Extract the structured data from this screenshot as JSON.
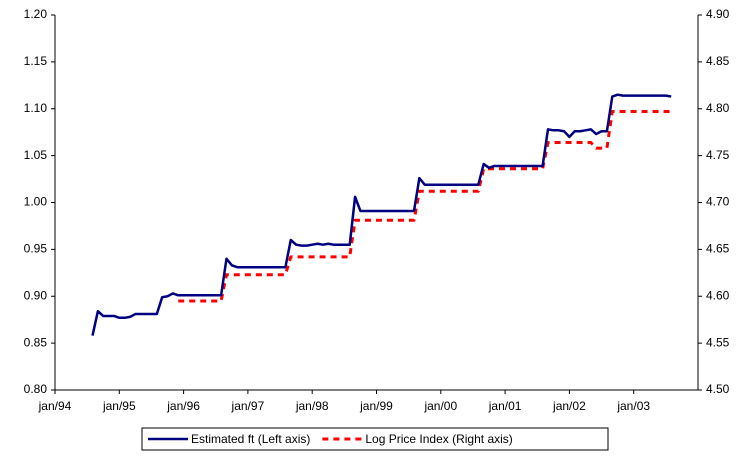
{
  "chart_data": {
    "type": "line",
    "x": [
      "1994-08",
      "1994-09",
      "1994-10",
      "1994-11",
      "1994-12",
      "1995-01",
      "1995-02",
      "1995-03",
      "1995-04",
      "1995-05",
      "1995-06",
      "1995-07",
      "1995-08",
      "1995-09",
      "1995-10",
      "1995-11",
      "1995-12",
      "1996-01",
      "1996-02",
      "1996-03",
      "1996-04",
      "1996-05",
      "1996-06",
      "1996-07",
      "1996-08",
      "1996-09",
      "1996-10",
      "1996-11",
      "1996-12",
      "1997-01",
      "1997-02",
      "1997-03",
      "1997-04",
      "1997-05",
      "1997-06",
      "1997-07",
      "1997-08",
      "1997-09",
      "1997-10",
      "1997-11",
      "1997-12",
      "1998-01",
      "1998-02",
      "1998-03",
      "1998-04",
      "1998-05",
      "1998-06",
      "1998-07",
      "1998-08",
      "1998-09",
      "1998-10",
      "1998-11",
      "1998-12",
      "1999-01",
      "1999-02",
      "1999-03",
      "1999-04",
      "1999-05",
      "1999-06",
      "1999-07",
      "1999-08",
      "1999-09",
      "1999-10",
      "1999-11",
      "1999-12",
      "2000-01",
      "2000-02",
      "2000-03",
      "2000-04",
      "2000-05",
      "2000-06",
      "2000-07",
      "2000-08",
      "2000-09",
      "2000-10",
      "2000-11",
      "2000-12",
      "2001-01",
      "2001-02",
      "2001-03",
      "2001-04",
      "2001-05",
      "2001-06",
      "2001-07",
      "2001-08",
      "2001-09",
      "2001-10",
      "2001-11",
      "2001-12",
      "2002-01",
      "2002-02",
      "2002-03",
      "2002-04",
      "2002-05",
      "2002-06",
      "2002-07",
      "2002-08",
      "2002-09",
      "2002-10",
      "2002-11",
      "2002-12",
      "2003-01",
      "2003-02",
      "2003-03",
      "2003-04",
      "2003-05",
      "2003-06",
      "2003-07",
      "2003-08"
    ],
    "series": [
      {
        "name": "Estimated ft (Left axis)",
        "color": "#000080",
        "axis": "y",
        "values": [
          0.858,
          0.884,
          0.879,
          0.879,
          0.879,
          0.877,
          0.877,
          0.878,
          0.881,
          0.881,
          0.881,
          0.881,
          0.881,
          0.899,
          0.9,
          0.903,
          0.901,
          0.901,
          0.901,
          0.901,
          0.901,
          0.901,
          0.901,
          0.901,
          0.901,
          0.94,
          0.933,
          0.931,
          0.931,
          0.931,
          0.931,
          0.931,
          0.931,
          0.931,
          0.931,
          0.931,
          0.931,
          0.96,
          0.955,
          0.954,
          0.954,
          0.955,
          0.956,
          0.955,
          0.956,
          0.955,
          0.955,
          0.955,
          0.955,
          1.006,
          0.991,
          0.991,
          0.991,
          0.991,
          0.991,
          0.991,
          0.991,
          0.991,
          0.991,
          0.991,
          0.991,
          1.026,
          1.019,
          1.019,
          1.019,
          1.019,
          1.019,
          1.019,
          1.019,
          1.019,
          1.019,
          1.019,
          1.019,
          1.041,
          1.037,
          1.039,
          1.039,
          1.039,
          1.039,
          1.039,
          1.039,
          1.039,
          1.039,
          1.039,
          1.039,
          1.078,
          1.077,
          1.077,
          1.076,
          1.07,
          1.076,
          1.076,
          1.077,
          1.078,
          1.073,
          1.076,
          1.076,
          1.113,
          1.115,
          1.114,
          1.114,
          1.114,
          1.114,
          1.114,
          1.114,
          1.114,
          1.114,
          1.114,
          1.113
        ]
      },
      {
        "name": "Log Price Index (Right axis)",
        "color": "#ff0000",
        "axis": "y2",
        "dashed": true,
        "values": [
          null,
          null,
          null,
          null,
          null,
          null,
          null,
          null,
          null,
          null,
          null,
          null,
          null,
          null,
          null,
          null,
          4.595,
          4.595,
          4.595,
          4.595,
          4.595,
          4.595,
          4.595,
          4.595,
          4.595,
          4.623,
          4.623,
          4.623,
          4.623,
          4.623,
          4.623,
          4.623,
          4.623,
          4.623,
          4.623,
          4.623,
          4.623,
          4.642,
          4.642,
          4.642,
          4.642,
          4.642,
          4.642,
          4.642,
          4.642,
          4.642,
          4.642,
          4.642,
          4.642,
          4.681,
          4.681,
          4.681,
          4.681,
          4.681,
          4.681,
          4.681,
          4.681,
          4.681,
          4.681,
          4.681,
          4.681,
          4.712,
          4.712,
          4.712,
          4.712,
          4.712,
          4.712,
          4.712,
          4.712,
          4.712,
          4.712,
          4.712,
          4.712,
          4.736,
          4.736,
          4.736,
          4.736,
          4.736,
          4.736,
          4.736,
          4.736,
          4.736,
          4.736,
          4.736,
          4.736,
          4.764,
          4.764,
          4.764,
          4.764,
          4.764,
          4.764,
          4.764,
          4.764,
          4.764,
          4.758,
          4.758,
          4.758,
          4.797,
          4.797,
          4.797,
          4.797,
          4.797,
          4.797,
          4.797,
          4.797,
          4.797,
          4.797,
          4.797,
          4.797
        ]
      }
    ],
    "xlim": [
      "1994-01",
      "2004-01"
    ],
    "xticks": [
      {
        "value": "1994-01",
        "label": "jan/94"
      },
      {
        "value": "1995-01",
        "label": "jan/95"
      },
      {
        "value": "1996-01",
        "label": "jan/96"
      },
      {
        "value": "1997-01",
        "label": "jan/97"
      },
      {
        "value": "1998-01",
        "label": "jan/98"
      },
      {
        "value": "1999-01",
        "label": "jan/99"
      },
      {
        "value": "2000-01",
        "label": "jan/00"
      },
      {
        "value": "2001-01",
        "label": "jan/01"
      },
      {
        "value": "2002-01",
        "label": "jan/02"
      },
      {
        "value": "2003-01",
        "label": "jan/03"
      }
    ],
    "ylim": [
      0.8,
      1.2
    ],
    "yticks": [
      {
        "value": 0.8,
        "label": "0.80"
      },
      {
        "value": 0.85,
        "label": "0.85"
      },
      {
        "value": 0.9,
        "label": "0.90"
      },
      {
        "value": 0.95,
        "label": "0.95"
      },
      {
        "value": 1.0,
        "label": "1.00"
      },
      {
        "value": 1.05,
        "label": "1.05"
      },
      {
        "value": 1.1,
        "label": "1.10"
      },
      {
        "value": 1.15,
        "label": "1.15"
      },
      {
        "value": 1.2,
        "label": "1.20"
      }
    ],
    "y2lim": [
      4.5,
      4.9
    ],
    "y2ticks": [
      {
        "value": 4.5,
        "label": "4.50"
      },
      {
        "value": 4.55,
        "label": "4.55"
      },
      {
        "value": 4.6,
        "label": "4.60"
      },
      {
        "value": 4.65,
        "label": "4.65"
      },
      {
        "value": 4.7,
        "label": "4.70"
      },
      {
        "value": 4.75,
        "label": "4.75"
      },
      {
        "value": 4.8,
        "label": "4.80"
      },
      {
        "value": 4.85,
        "label": "4.85"
      },
      {
        "value": 4.9,
        "label": "4.90"
      }
    ],
    "grid": false,
    "legend": "bottom"
  }
}
